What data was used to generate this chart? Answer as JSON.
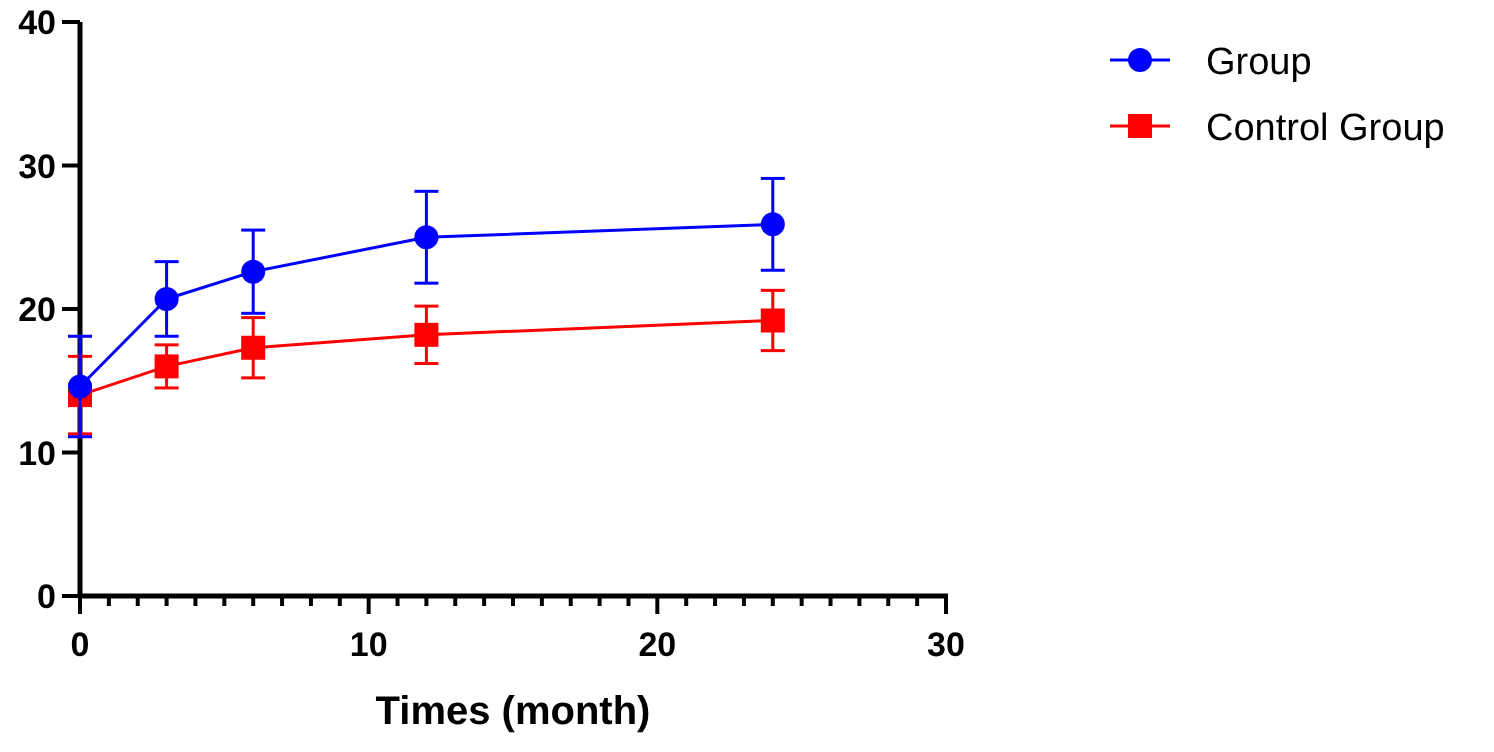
{
  "chart_data": {
    "type": "line",
    "xlabel": "Times (month)",
    "x": [
      0,
      3,
      6,
      12,
      24
    ],
    "series": [
      {
        "name": "Group",
        "color": "#0000ff",
        "marker": "circle",
        "values": [
          14.6,
          20.7,
          22.6,
          25.0,
          25.9
        ],
        "errors": [
          3.5,
          2.6,
          2.9,
          3.2,
          3.2
        ]
      },
      {
        "name": "Control Group",
        "color": "#ff0000",
        "marker": "square",
        "values": [
          14.0,
          16.0,
          17.3,
          18.2,
          19.2
        ],
        "errors": [
          2.7,
          1.5,
          2.1,
          2.0,
          2.1
        ]
      }
    ],
    "xlim": [
      0,
      30
    ],
    "xticks": [
      0,
      {
        "value": 1,
        "label": null
      },
      {
        "value": 2,
        "label": null
      },
      {
        "value": 3,
        "label": null
      },
      {
        "value": 4,
        "label": null
      },
      {
        "value": 5,
        "label": null
      },
      {
        "value": 6,
        "label": null
      },
      {
        "value": 7,
        "label": null
      },
      {
        "value": 8,
        "label": null
      },
      {
        "value": 9,
        "label": null
      },
      10,
      {
        "value": 11,
        "label": null
      },
      {
        "value": 12,
        "label": null
      },
      {
        "value": 13,
        "label": null
      },
      {
        "value": 14,
        "label": null
      },
      {
        "value": 15,
        "label": null
      },
      {
        "value": 16,
        "label": null
      },
      {
        "value": 17,
        "label": null
      },
      {
        "value": 18,
        "label": null
      },
      {
        "value": 19,
        "label": null
      },
      20,
      {
        "value": 21,
        "label": null
      },
      {
        "value": 22,
        "label": null
      },
      {
        "value": 23,
        "label": null
      },
      {
        "value": 24,
        "label": null
      },
      {
        "value": 25,
        "label": null
      },
      {
        "value": 26,
        "label": null
      },
      {
        "value": 27,
        "label": null
      },
      {
        "value": 28,
        "label": null
      },
      {
        "value": 29,
        "label": null
      },
      30
    ],
    "ylim": [
      0,
      40
    ],
    "yticks": [
      0,
      10,
      20,
      30,
      40
    ],
    "grid": false,
    "legend": "top right"
  }
}
